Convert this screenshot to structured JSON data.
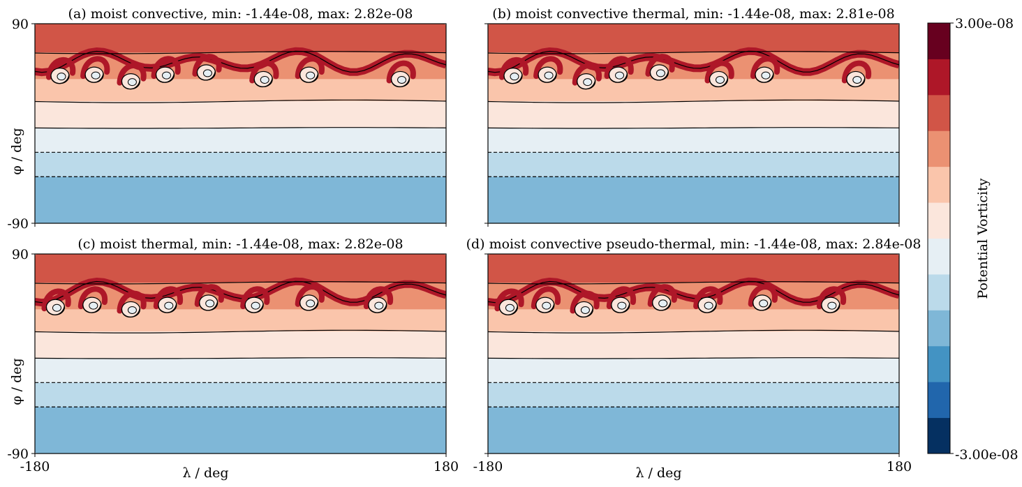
{
  "chart_data": {
    "type": "heatmap",
    "subtype": "filled-contour",
    "colorbar": {
      "label": "Potential Vorticity",
      "max_label": "3.00e-08",
      "min_label": "-3.00e-08",
      "range": [
        -3e-08,
        3e-08
      ],
      "levels": 12,
      "colors": [
        "#053061",
        "#2166ac",
        "#4393c3",
        "#7fb7d7",
        "#bbdaea",
        "#e6eff4",
        "#fbe6dc",
        "#fac5ab",
        "#eb9172",
        "#d15547",
        "#ae1728",
        "#67001f"
      ]
    },
    "axes_common": {
      "xlim": [
        -180,
        180
      ],
      "ylim": [
        -90,
        90
      ],
      "xticks": [
        "-180",
        "180"
      ],
      "yticks": [
        "-90",
        "90"
      ],
      "xlabel": "λ / deg",
      "ylabel": "φ / deg"
    },
    "panels": [
      {
        "id": "a",
        "title": "(a) moist convective, min: -1.44e-08, max: 2.82e-08",
        "min": -1.44e-08,
        "max": 2.82e-08,
        "show_xlabels": false,
        "show_ylabels": true,
        "vortices": [
          [
            -158,
            43
          ],
          [
            -128,
            44
          ],
          [
            -96,
            38
          ],
          [
            -66,
            44
          ],
          [
            -30,
            46
          ],
          [
            20,
            40
          ],
          [
            60,
            44
          ],
          [
            140,
            40
          ]
        ]
      },
      {
        "id": "b",
        "title": "(b) moist convective thermal, min: -1.44e-08, max: 2.81e-08",
        "min": -1.44e-08,
        "max": 2.81e-08,
        "show_xlabels": false,
        "show_ylabels": false,
        "vortices": [
          [
            -158,
            43
          ],
          [
            -128,
            44
          ],
          [
            -94,
            38
          ],
          [
            -66,
            44
          ],
          [
            -30,
            46
          ],
          [
            22,
            40
          ],
          [
            62,
            44
          ],
          [
            142,
            40
          ]
        ]
      },
      {
        "id": "c",
        "title": "(c) moist thermal, min: -1.44e-08, max: 2.82e-08",
        "min": -1.44e-08,
        "max": 2.82e-08,
        "show_xlabels": true,
        "show_ylabels": true,
        "vortices": [
          [
            -162,
            42
          ],
          [
            -130,
            44
          ],
          [
            -96,
            40
          ],
          [
            -64,
            44
          ],
          [
            -28,
            46
          ],
          [
            12,
            44
          ],
          [
            60,
            46
          ],
          [
            120,
            44
          ]
        ]
      },
      {
        "id": "d",
        "title": "(d) moist convective pseudo-thermal, min: -1.44e-08, max: 2.84e-08",
        "min": -1.44e-08,
        "max": 2.84e-08,
        "show_xlabels": true,
        "show_ylabels": false,
        "vortices": [
          [
            -162,
            42
          ],
          [
            -130,
            44
          ],
          [
            -96,
            40
          ],
          [
            -64,
            44
          ],
          [
            -28,
            46
          ],
          [
            12,
            44
          ],
          [
            60,
            46
          ],
          [
            120,
            44
          ]
        ]
      }
    ]
  }
}
